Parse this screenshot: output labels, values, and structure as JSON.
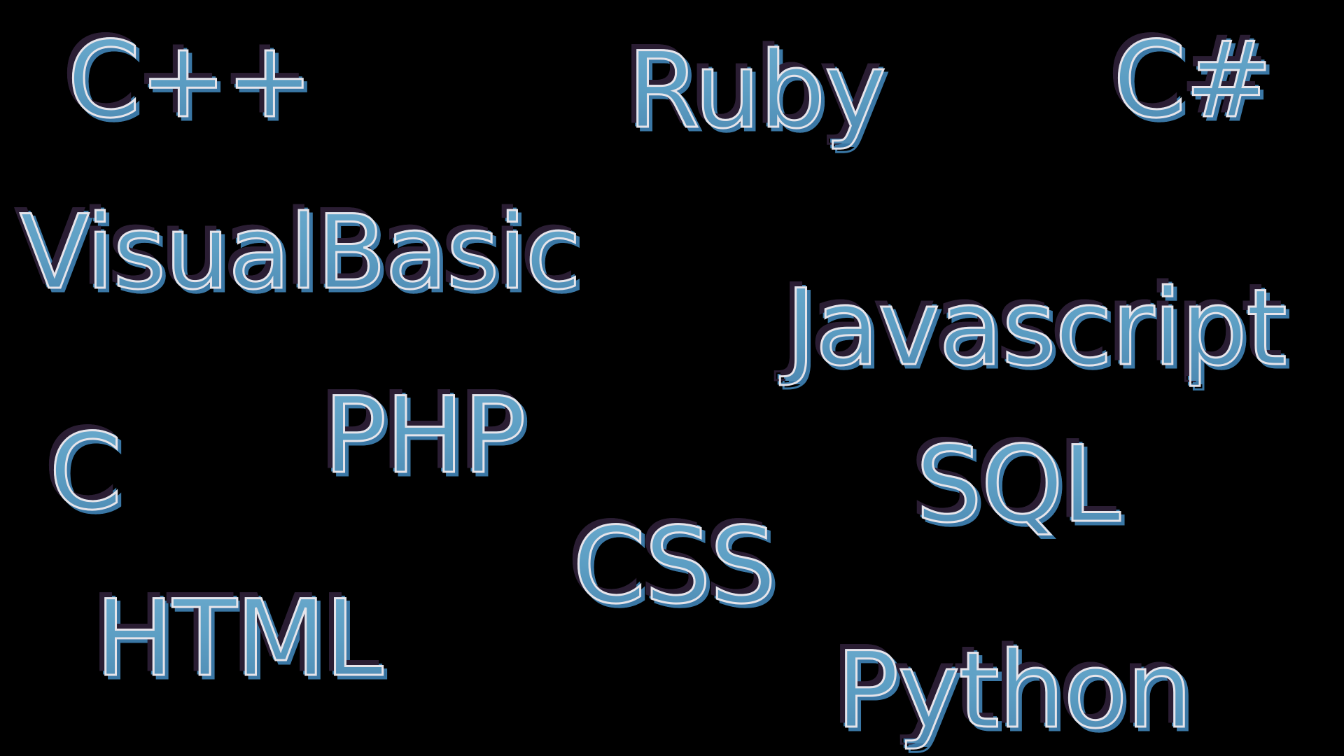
{
  "words": {
    "cpp": "C++",
    "ruby": "Ruby",
    "csharp": "C#",
    "visual_basic": "VisualBasic",
    "javascript": "Javascript",
    "php": "PHP",
    "c": "C",
    "sql": "SQL",
    "css": "CSS",
    "html": "HTML",
    "python": "Python"
  },
  "colors": {
    "background": "#000000",
    "text_fill": "#5d9fc4",
    "text_outline": "#e6e4ea",
    "shadow_dark": "#2a1d33",
    "shadow_blue": "#3a77a5"
  }
}
